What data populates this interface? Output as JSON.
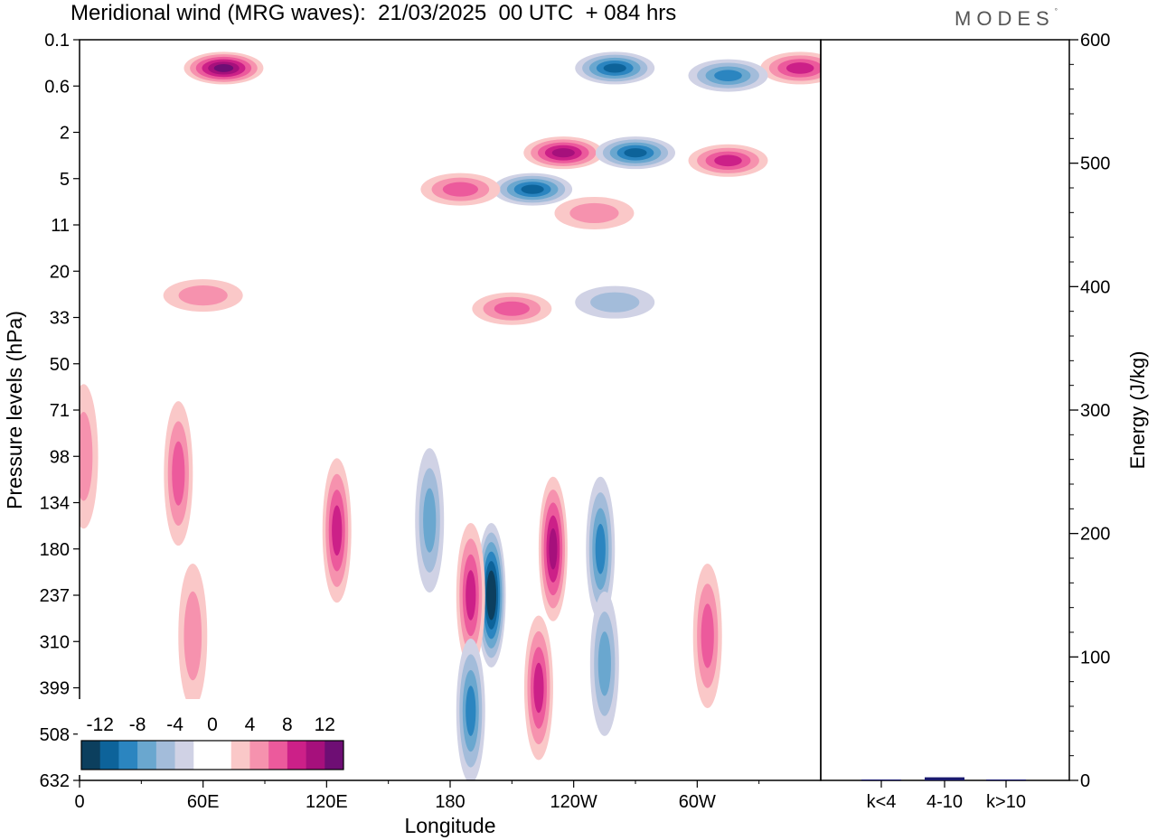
{
  "title": "Meridional wind (MRG waves):  21/03/2025  00 UTC  + 084 hrs",
  "logo": "MODES",
  "colors": {
    "levels": [
      "#0c3f5e",
      "#0d639a",
      "#2b85c0",
      "#6aa7cf",
      "#a3bcda",
      "#d0d2e5",
      "#ffffff",
      "#ffffff",
      "#fac8c8",
      "#f692ae",
      "#ec5a9c",
      "#cc2088",
      "#a6107c",
      "#6e0e74"
    ]
  },
  "chart_data": [
    {
      "type": "heatmap",
      "title": "Meridional wind (MRG waves):  21/03/2025  00 UTC  + 084 hrs",
      "xlabel": "Longitude",
      "ylabel": "Pressure levels (hPa)",
      "x_ticks": [
        "0",
        "60E",
        "120E",
        "180",
        "120W",
        "60W"
      ],
      "y_ticks": [
        "0.1",
        "0.6",
        "2",
        "5",
        "11",
        "20",
        "33",
        "50",
        "71",
        "98",
        "134",
        "180",
        "237",
        "310",
        "399",
        "508",
        "632"
      ],
      "colorbar": {
        "tick_labels": [
          "-12",
          "-8",
          "-4",
          "0",
          "4",
          "8",
          "12"
        ],
        "range": [
          -14,
          14
        ],
        "interval": 2
      },
      "features": [
        {
          "lon": 200,
          "p": 237,
          "value": -14
        },
        {
          "lon": 230,
          "p": 180,
          "value": 11
        },
        {
          "lon": 223,
          "p": 399,
          "value": 9
        },
        {
          "lon": 190,
          "p": 237,
          "value": 8
        },
        {
          "lon": 190,
          "p": 450,
          "value": -8
        },
        {
          "lon": 253,
          "p": 180,
          "value": -8
        },
        {
          "lon": 255,
          "p": 350,
          "value": -7
        },
        {
          "lon": 125,
          "p": 160,
          "value": 9
        },
        {
          "lon": 170,
          "p": 150,
          "value": -6
        },
        {
          "lon": 48,
          "p": 110,
          "value": 6
        },
        {
          "lon": 2,
          "p": 98,
          "value": 5
        },
        {
          "lon": 55,
          "p": 300,
          "value": 5
        },
        {
          "lon": 305,
          "p": 300,
          "value": 6
        },
        {
          "lon": 70,
          "p": 0.3,
          "value": 13
        },
        {
          "lon": 350,
          "p": 0.3,
          "value": 8
        },
        {
          "lon": 260,
          "p": 0.3,
          "value": -10
        },
        {
          "lon": 315,
          "p": 0.4,
          "value": -9
        },
        {
          "lon": 235,
          "p": 3,
          "value": 10
        },
        {
          "lon": 270,
          "p": 3,
          "value": -11
        },
        {
          "lon": 315,
          "p": 3.5,
          "value": 9
        },
        {
          "lon": 220,
          "p": 6,
          "value": -11
        },
        {
          "lon": 185,
          "p": 6,
          "value": 7
        },
        {
          "lon": 250,
          "p": 9,
          "value": 5
        },
        {
          "lon": 210,
          "p": 30,
          "value": 6
        },
        {
          "lon": 260,
          "p": 28,
          "value": -5
        },
        {
          "lon": 60,
          "p": 26,
          "value": 5
        }
      ]
    },
    {
      "type": "bar",
      "categories": [
        "k<4",
        "4-10",
        "k>10"
      ],
      "values": [
        0.6,
        2.5,
        0.4
      ],
      "ylabel": "Energy (J/kg)",
      "ylim": [
        0,
        600
      ],
      "y_ticks": [
        "0",
        "100",
        "200",
        "300",
        "400",
        "500",
        "600"
      ],
      "bar_color": "#1a1a6e"
    }
  ]
}
